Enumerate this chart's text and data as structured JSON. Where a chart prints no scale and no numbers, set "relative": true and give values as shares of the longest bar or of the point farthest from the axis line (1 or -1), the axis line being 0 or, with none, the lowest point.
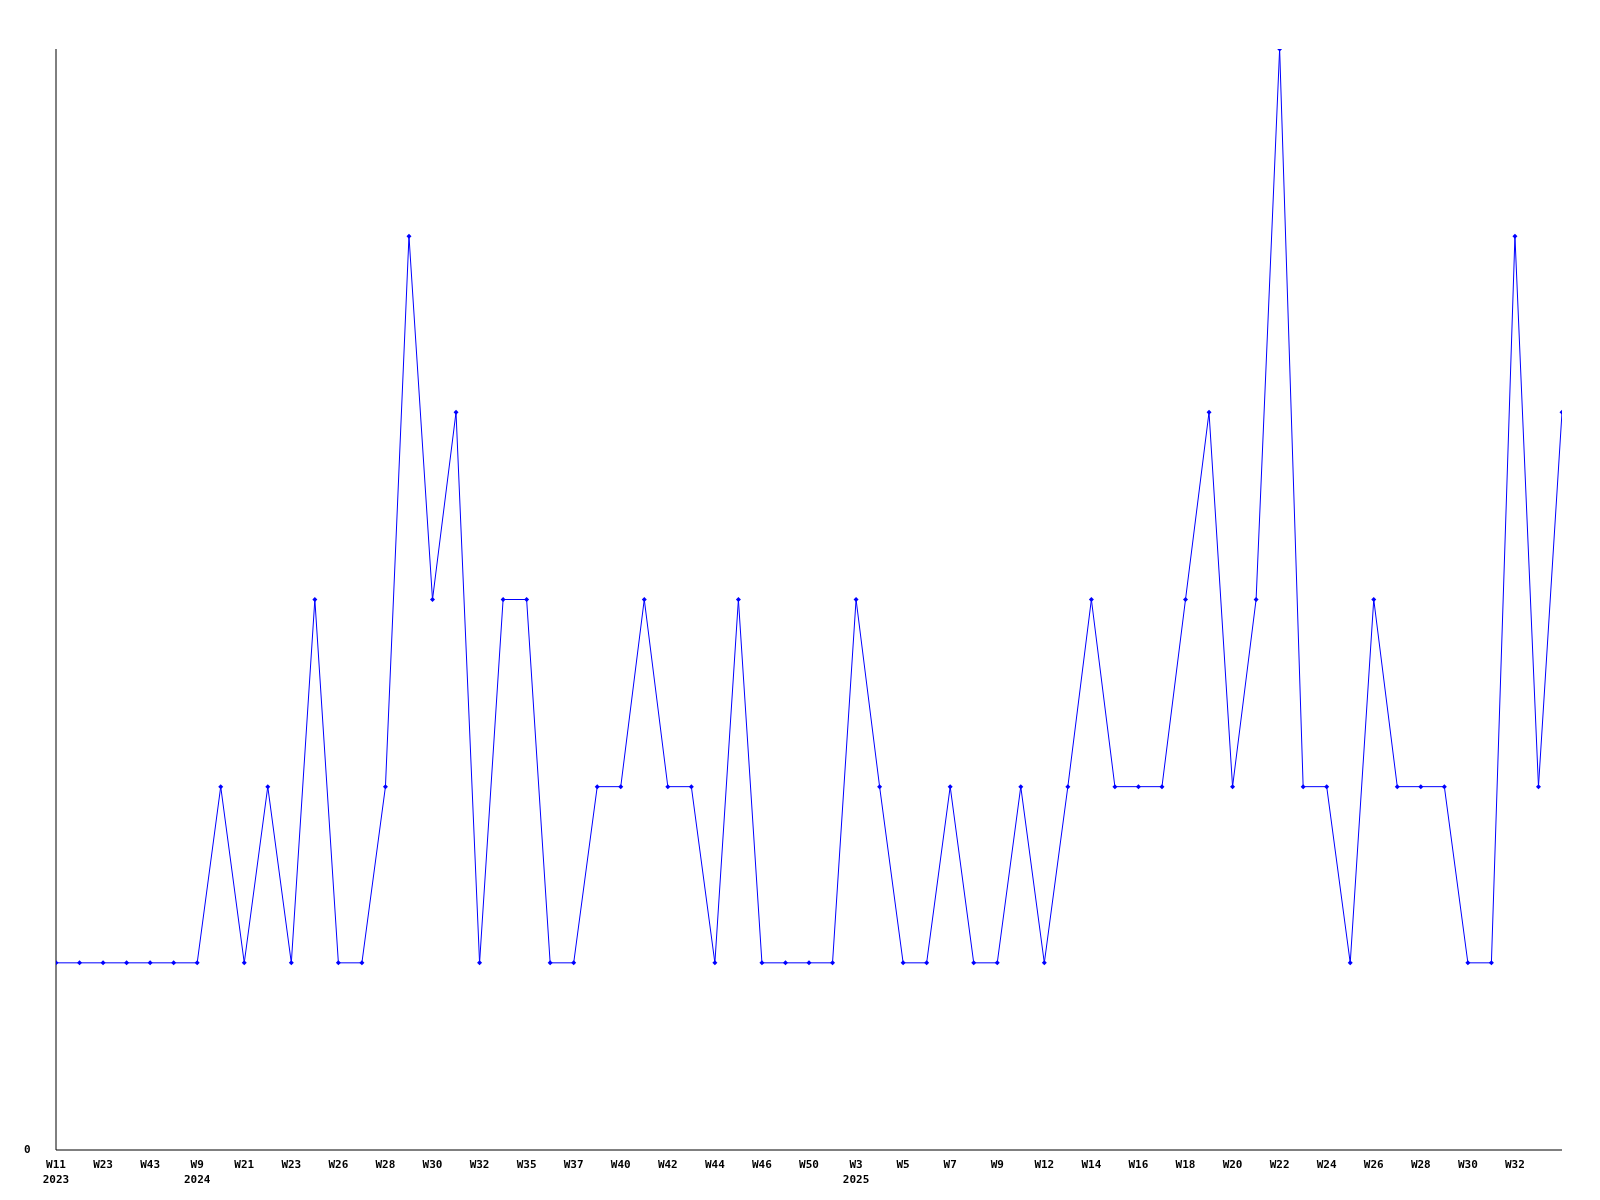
{
  "chart_data": {
    "type": "line",
    "relative": true,
    "marker": "diamond",
    "line_style": "solid",
    "grid": false,
    "legend": false,
    "annotations": [
      "0"
    ],
    "categories": [
      "W11\n2023",
      null,
      "W23",
      null,
      "W43",
      null,
      "W9\n2024",
      null,
      "W21",
      null,
      "W23",
      null,
      "W26",
      null,
      "W28",
      null,
      "W30",
      null,
      "W32",
      null,
      "W35",
      null,
      "W37",
      null,
      "W40",
      null,
      "W42",
      null,
      "W44",
      null,
      "W46",
      null,
      "W50",
      null,
      "W3\n2025",
      null,
      "W5",
      null,
      "W7",
      null,
      "W9",
      null,
      "W12",
      null,
      "W14",
      null,
      "W16",
      null,
      "W18",
      null,
      "W20",
      null,
      "W22",
      null,
      "W24",
      null,
      "W26",
      null,
      "W28",
      null,
      "W30",
      null,
      "W32",
      null,
      null
    ],
    "series": [
      {
        "color": "#0000ff",
        "values": [
          0.17,
          0.17,
          0.17,
          0.17,
          0.17,
          0.17,
          0.17,
          0.33,
          0.17,
          0.33,
          0.17,
          0.5,
          0.17,
          0.17,
          0.33,
          0.83,
          0.5,
          0.67,
          0.17,
          0.5,
          0.5,
          0.17,
          0.17,
          0.33,
          0.33,
          0.5,
          0.33,
          0.33,
          0.17,
          0.5,
          0.17,
          0.17,
          0.17,
          0.17,
          0.5,
          0.33,
          0.17,
          0.17,
          0.33,
          0.17,
          0.17,
          0.33,
          0.17,
          0.33,
          0.5,
          0.33,
          0.33,
          0.33,
          0.5,
          0.67,
          0.33,
          0.5,
          1,
          0.33,
          0.33,
          0.17,
          0.5,
          0.33,
          0.33,
          0.33,
          0.17,
          0.17,
          0.83,
          0.33,
          0.67
        ]
      }
    ]
  }
}
